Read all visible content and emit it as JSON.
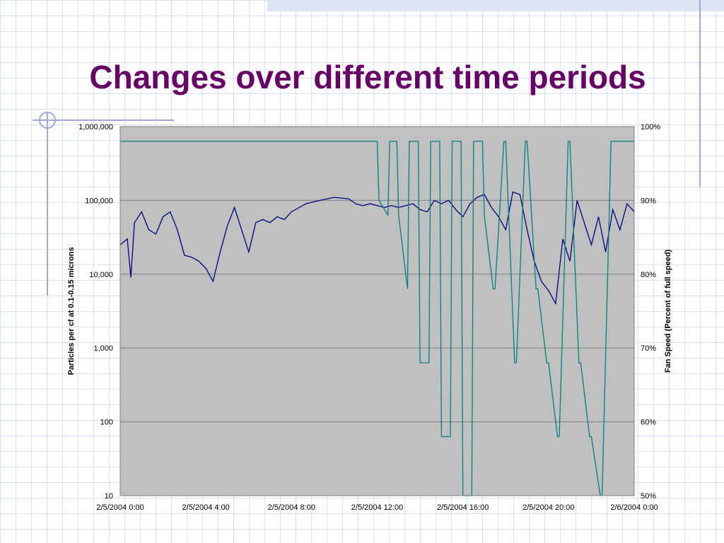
{
  "slide": {
    "title": "Changes over different time periods"
  },
  "colors": {
    "title": "#660066",
    "plot_background": "#c0c0c0",
    "particles_series": "#000080",
    "fan_series": "#008080",
    "gridline": "#808080",
    "decoration": "#9fa8d6"
  },
  "chart_data": {
    "type": "line",
    "grid": true,
    "legend": "none",
    "xlim": [
      "2/5/2004 0:00",
      "2/6/2004 0:00"
    ],
    "x_tick_labels": [
      "2/5/2004 0:00",
      "2/5/2004 4:00",
      "2/5/2004 8:00",
      "2/5/2004 12:00",
      "2/5/2004 16:00",
      "2/5/2004 20:00",
      "2/6/2004 0:00"
    ],
    "left_axis": {
      "label": "Particles per cf at 0.1-0.15 microns",
      "scale": "log",
      "ylim": [
        10,
        1000000
      ],
      "tick_labels": [
        "1,000,000",
        "100,000",
        "10,000",
        "1,000",
        "100",
        "10"
      ]
    },
    "right_axis": {
      "label": "Fan Speed (Percent of full speed)",
      "ylim": [
        50,
        100
      ],
      "unit": "%",
      "tick_labels": [
        "100%",
        "90%",
        "80%",
        "70%",
        "60%",
        "50%"
      ]
    },
    "series": [
      {
        "axis": "left",
        "x": [
          "2/5/2004 0:00",
          "2/5/2004 0:20",
          "2/5/2004 0:30",
          "2/5/2004 0:40",
          "2/5/2004 1:00",
          "2/5/2004 1:20",
          "2/5/2004 1:40",
          "2/5/2004 2:00",
          "2/5/2004 2:20",
          "2/5/2004 2:40",
          "2/5/2004 3:00",
          "2/5/2004 3:20",
          "2/5/2004 3:40",
          "2/5/2004 4:00",
          "2/5/2004 4:20",
          "2/5/2004 4:40",
          "2/5/2004 5:00",
          "2/5/2004 5:20",
          "2/5/2004 5:40",
          "2/5/2004 6:00",
          "2/5/2004 6:20",
          "2/5/2004 6:40",
          "2/5/2004 7:00",
          "2/5/2004 7:20",
          "2/5/2004 7:40",
          "2/5/2004 8:00",
          "2/5/2004 8:40",
          "2/5/2004 9:20",
          "2/5/2004 10:00",
          "2/5/2004 10:40",
          "2/5/2004 11:00",
          "2/5/2004 11:20",
          "2/5/2004 11:40",
          "2/5/2004 12:00",
          "2/5/2004 12:20",
          "2/5/2004 12:40",
          "2/5/2004 13:00",
          "2/5/2004 13:20",
          "2/5/2004 13:40",
          "2/5/2004 14:00",
          "2/5/2004 14:20",
          "2/5/2004 14:40",
          "2/5/2004 15:00",
          "2/5/2004 15:20",
          "2/5/2004 15:40",
          "2/5/2004 16:00",
          "2/5/2004 16:20",
          "2/5/2004 16:40",
          "2/5/2004 17:00",
          "2/5/2004 17:20",
          "2/5/2004 17:40",
          "2/5/2004 18:00",
          "2/5/2004 18:20",
          "2/5/2004 18:40",
          "2/5/2004 19:00",
          "2/5/2004 19:20",
          "2/5/2004 19:40",
          "2/5/2004 20:00",
          "2/5/2004 20:20",
          "2/5/2004 20:40",
          "2/5/2004 21:00",
          "2/5/2004 21:20",
          "2/5/2004 21:40",
          "2/5/2004 22:00",
          "2/5/2004 22:20",
          "2/5/2004 22:40",
          "2/5/2004 23:00",
          "2/5/2004 23:20",
          "2/5/2004 23:40",
          "2/6/2004 0:00"
        ],
        "values": [
          25000,
          30000,
          9000,
          50000,
          70000,
          40000,
          35000,
          60000,
          70000,
          40000,
          18000,
          17000,
          15000,
          12000,
          8000,
          20000,
          45000,
          80000,
          40000,
          20000,
          50000,
          55000,
          50000,
          60000,
          55000,
          70000,
          90000,
          100000,
          110000,
          105000,
          90000,
          85000,
          90000,
          85000,
          80000,
          85000,
          80000,
          85000,
          90000,
          75000,
          70000,
          100000,
          90000,
          100000,
          75000,
          60000,
          90000,
          110000,
          120000,
          80000,
          60000,
          40000,
          130000,
          120000,
          40000,
          15000,
          8000,
          6000,
          4000,
          30000,
          15000,
          100000,
          50000,
          25000,
          60000,
          20000,
          75000,
          40000,
          90000,
          70000
        ]
      },
      {
        "axis": "right",
        "x": [
          "2/5/2004 0:00",
          "2/5/2004 12:00",
          "2/5/2004 12:05",
          "2/5/2004 12:30",
          "2/5/2004 12:35",
          "2/5/2004 12:55",
          "2/5/2004 13:00",
          "2/5/2004 13:25",
          "2/5/2004 13:30",
          "2/5/2004 13:55",
          "2/5/2004 14:00",
          "2/5/2004 14:25",
          "2/5/2004 14:30",
          "2/5/2004 14:55",
          "2/5/2004 15:00",
          "2/5/2004 15:25",
          "2/5/2004 15:30",
          "2/5/2004 15:55",
          "2/5/2004 16:00",
          "2/5/2004 16:25",
          "2/5/2004 16:30",
          "2/5/2004 16:55",
          "2/5/2004 17:00",
          "2/5/2004 17:25",
          "2/5/2004 17:30",
          "2/5/2004 17:55",
          "2/5/2004 18:00",
          "2/5/2004 18:25",
          "2/5/2004 18:30",
          "2/5/2004 18:55",
          "2/5/2004 19:00",
          "2/5/2004 19:25",
          "2/5/2004 19:30",
          "2/5/2004 19:55",
          "2/5/2004 20:00",
          "2/5/2004 20:25",
          "2/5/2004 20:30",
          "2/5/2004 20:55",
          "2/5/2004 21:00",
          "2/5/2004 21:25",
          "2/5/2004 21:30",
          "2/5/2004 21:55",
          "2/5/2004 22:00",
          "2/5/2004 22:25",
          "2/5/2004 22:30",
          "2/5/2004 22:55",
          "2/5/2004 23:00",
          "2/5/2004 23:25",
          "2/5/2004 23:30",
          "2/6/2004 0:00"
        ],
        "values": [
          98,
          98,
          90,
          88,
          98,
          98,
          88,
          78,
          98,
          98,
          68,
          68,
          98,
          98,
          58,
          58,
          98,
          98,
          50,
          50,
          98,
          98,
          88,
          78,
          78,
          98,
          98,
          68,
          68,
          98,
          98,
          78,
          78,
          68,
          68,
          58,
          58,
          98,
          98,
          68,
          68,
          58,
          58,
          50,
          50,
          98,
          98,
          98,
          98,
          98
        ]
      }
    ]
  }
}
